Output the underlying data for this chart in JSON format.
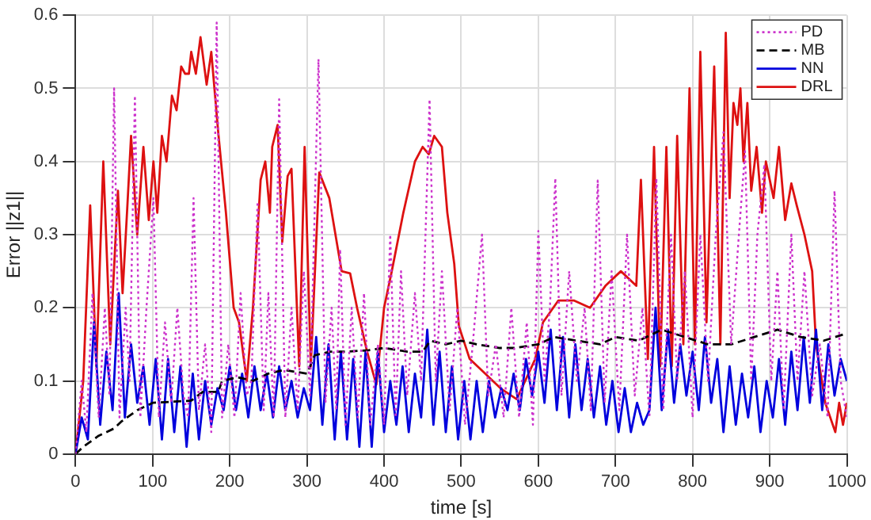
{
  "chart_data": {
    "type": "line",
    "xlabel": "time [s]",
    "ylabel": "Error ||z1||",
    "xlim": [
      0,
      1000
    ],
    "xticks": [
      0,
      100,
      200,
      300,
      400,
      500,
      600,
      700,
      800,
      900,
      1000
    ],
    "ylim": [
      0,
      0.6
    ],
    "yticks": [
      0,
      0.1,
      0.2,
      0.3,
      0.4,
      0.5,
      0.6
    ],
    "grid": true,
    "legend": "top right",
    "marker": "none",
    "series": [
      {
        "name": "PD",
        "color": "#cc33cc",
        "line_style": "dotted",
        "x": [
          0,
          8,
          14,
          22,
          30,
          38,
          44,
          50,
          57,
          65,
          70,
          77,
          84,
          92,
          101,
          108,
          116,
          124,
          132,
          140,
          146,
          153,
          160,
          168,
          176,
          183,
          190,
          198,
          206,
          214,
          222,
          228,
          236,
          244,
          250,
          257,
          264,
          272,
          280,
          288,
          296,
          304,
          315,
          324,
          332,
          338,
          343,
          350,
          358,
          366,
          374,
          382,
          392,
          400,
          408,
          415,
          422,
          430,
          440,
          448,
          459,
          467,
          475,
          485,
          495,
          505,
          515,
          527,
          535,
          545,
          555,
          565,
          575,
          585,
          593,
          600,
          608,
          615,
          622,
          630,
          640,
          650,
          660,
          668,
          677,
          686,
          695,
          705,
          715,
          725,
          735,
          744,
          753,
          762,
          772,
          780,
          790,
          800,
          810,
          820,
          830,
          840,
          850,
          860,
          868,
          876,
          884,
          893,
          902,
          910,
          918,
          928,
          936,
          945,
          955,
          965,
          975,
          984,
          992,
          1000
        ],
        "values": [
          0,
          0.1,
          0.03,
          0.22,
          0.05,
          0.2,
          0.08,
          0.5,
          0.05,
          0.2,
          0.1,
          0.49,
          0.05,
          0.2,
          0.35,
          0.05,
          0.18,
          0.07,
          0.2,
          0.08,
          0.05,
          0.35,
          0.06,
          0.15,
          0.03,
          0.59,
          0.05,
          0.15,
          0.05,
          0.22,
          0.08,
          0.1,
          0.345,
          0.06,
          0.22,
          0.05,
          0.485,
          0.05,
          0.2,
          0.06,
          0.25,
          0.08,
          0.54,
          0.07,
          0.2,
          0.06,
          0.28,
          0.04,
          0.2,
          0.05,
          0.22,
          0.04,
          0.15,
          0.04,
          0.3,
          0.05,
          0.25,
          0.08,
          0.22,
          0.1,
          0.485,
          0.1,
          0.25,
          0.06,
          0.2,
          0.04,
          0.15,
          0.3,
          0.08,
          0.15,
          0.05,
          0.2,
          0.05,
          0.18,
          0.04,
          0.305,
          0.1,
          0.2,
          0.377,
          0.08,
          0.25,
          0.1,
          0.2,
          0.06,
          0.374,
          0.07,
          0.25,
          0.06,
          0.3,
          0.08,
          0.2,
          0.05,
          0.377,
          0.06,
          0.3,
          0.1,
          0.25,
          0.05,
          0.3,
          0.1,
          0.3,
          0.44,
          0.15,
          0.3,
          0.414,
          0.1,
          0.3,
          0.396,
          0.1,
          0.25,
          0.06,
          0.3,
          0.1,
          0.25,
          0.08,
          0.15,
          0.05,
          0.36,
          0.1,
          0.05
        ]
      },
      {
        "name": "MB",
        "color": "#000000",
        "line_style": "dashed",
        "x": [
          0,
          10,
          30,
          50,
          60,
          80,
          100,
          150,
          165,
          185,
          190,
          210,
          230,
          250,
          270,
          300,
          310,
          330,
          350,
          380,
          400,
          430,
          450,
          460,
          480,
          500,
          520,
          550,
          570,
          600,
          620,
          650,
          680,
          700,
          730,
          760,
          790,
          820,
          850,
          880,
          910,
          940,
          970,
          1000
        ],
        "values": [
          0,
          0.01,
          0.025,
          0.035,
          0.045,
          0.06,
          0.07,
          0.073,
          0.085,
          0.085,
          0.1,
          0.105,
          0.1,
          0.11,
          0.115,
          0.11,
          0.135,
          0.14,
          0.14,
          0.142,
          0.145,
          0.14,
          0.14,
          0.155,
          0.15,
          0.155,
          0.15,
          0.145,
          0.145,
          0.15,
          0.16,
          0.155,
          0.15,
          0.16,
          0.155,
          0.17,
          0.16,
          0.15,
          0.15,
          0.16,
          0.17,
          0.16,
          0.155,
          0.165
        ]
      },
      {
        "name": "NN",
        "color": "#0000dd",
        "line_style": "solid",
        "x": [
          0,
          8,
          16,
          24,
          32,
          40,
          48,
          56,
          64,
          72,
          80,
          88,
          96,
          104,
          112,
          120,
          128,
          136,
          144,
          152,
          160,
          168,
          176,
          184,
          192,
          200,
          208,
          216,
          224,
          232,
          240,
          248,
          256,
          264,
          272,
          280,
          288,
          296,
          304,
          312,
          320,
          328,
          336,
          344,
          352,
          360,
          368,
          376,
          384,
          392,
          400,
          408,
          416,
          424,
          432,
          440,
          448,
          456,
          464,
          472,
          480,
          488,
          496,
          504,
          512,
          520,
          528,
          536,
          544,
          552,
          560,
          568,
          576,
          584,
          592,
          600,
          608,
          616,
          624,
          632,
          640,
          648,
          656,
          664,
          672,
          680,
          688,
          696,
          704,
          712,
          720,
          728,
          736,
          744,
          752,
          760,
          768,
          776,
          784,
          792,
          800,
          808,
          816,
          824,
          832,
          840,
          848,
          856,
          864,
          872,
          880,
          888,
          896,
          904,
          912,
          920,
          928,
          936,
          944,
          952,
          960,
          968,
          976,
          984,
          992,
          1000
        ],
        "values": [
          0,
          0.05,
          0.02,
          0.18,
          0.04,
          0.14,
          0.06,
          0.22,
          0.05,
          0.15,
          0.07,
          0.12,
          0.04,
          0.13,
          0.02,
          0.13,
          0.03,
          0.12,
          0.01,
          0.11,
          0.02,
          0.1,
          0.04,
          0.09,
          0.06,
          0.12,
          0.06,
          0.11,
          0.05,
          0.12,
          0.06,
          0.11,
          0.05,
          0.12,
          0.06,
          0.1,
          0.05,
          0.09,
          0.06,
          0.16,
          0.04,
          0.15,
          0.02,
          0.14,
          0.02,
          0.13,
          0.01,
          0.14,
          0.01,
          0.14,
          0.03,
          0.1,
          0.04,
          0.12,
          0.03,
          0.11,
          0.05,
          0.17,
          0.04,
          0.14,
          0.03,
          0.12,
          0.02,
          0.1,
          0.02,
          0.1,
          0.03,
          0.1,
          0.05,
          0.09,
          0.06,
          0.11,
          0.06,
          0.13,
          0.08,
          0.14,
          0.07,
          0.17,
          0.06,
          0.16,
          0.05,
          0.15,
          0.06,
          0.13,
          0.05,
          0.12,
          0.04,
          0.1,
          0.03,
          0.09,
          0.03,
          0.07,
          0.04,
          0.06,
          0.2,
          0.06,
          0.17,
          0.07,
          0.15,
          0.08,
          0.14,
          0.06,
          0.16,
          0.07,
          0.13,
          0.03,
          0.12,
          0.04,
          0.11,
          0.05,
          0.12,
          0.03,
          0.1,
          0.05,
          0.13,
          0.04,
          0.14,
          0.06,
          0.16,
          0.07,
          0.17,
          0.06,
          0.15,
          0.08,
          0.13,
          0.1
        ]
      },
      {
        "name": "DRL",
        "color": "#dd1111",
        "line_style": "solid",
        "x": [
          0,
          10,
          19,
          27,
          36,
          45,
          55,
          61,
          67,
          72,
          80,
          88,
          95,
          101,
          106,
          112,
          118,
          125,
          131,
          137,
          142,
          147,
          150,
          156,
          162,
          170,
          176,
          185,
          195,
          205,
          212,
          222,
          230,
          240,
          246,
          252,
          255,
          262,
          268,
          275,
          280,
          290,
          297,
          305,
          316,
          329,
          345,
          356,
          365,
          378,
          390,
          400,
          410,
          425,
          440,
          450,
          458,
          465,
          475,
          482,
          491,
          497,
          511,
          531,
          552,
          572,
          596,
          606,
          626,
          646,
          667,
          687,
          707,
          727,
          733,
          742,
          750,
          758,
          766,
          773,
          780,
          788,
          796,
          803,
          810,
          818,
          828,
          836,
          843,
          848,
          853,
          858,
          862,
          866,
          871,
          876,
          883,
          890,
          895,
          905,
          912,
          920,
          928,
          935,
          945,
          955,
          960,
          972,
          985,
          990,
          995,
          1000
        ],
        "values": [
          0,
          0.1,
          0.34,
          0.12,
          0.4,
          0.15,
          0.36,
          0.22,
          0.335,
          0.435,
          0.3,
          0.42,
          0.32,
          0.4,
          0.33,
          0.435,
          0.4,
          0.49,
          0.47,
          0.53,
          0.52,
          0.52,
          0.55,
          0.52,
          0.57,
          0.505,
          0.55,
          0.44,
          0.33,
          0.2,
          0.18,
          0.1,
          0.2,
          0.375,
          0.4,
          0.33,
          0.42,
          0.45,
          0.29,
          0.38,
          0.39,
          0.12,
          0.42,
          0.12,
          0.385,
          0.35,
          0.25,
          0.247,
          0.2,
          0.14,
          0.095,
          0.2,
          0.25,
          0.33,
          0.4,
          0.42,
          0.41,
          0.435,
          0.42,
          0.33,
          0.26,
          0.175,
          0.13,
          0.11,
          0.089,
          0.075,
          0.13,
          0.18,
          0.21,
          0.21,
          0.2,
          0.23,
          0.25,
          0.23,
          0.375,
          0.13,
          0.42,
          0.12,
          0.42,
          0.12,
          0.435,
          0.15,
          0.5,
          0.15,
          0.55,
          0.18,
          0.53,
          0.15,
          0.576,
          0.35,
          0.48,
          0.45,
          0.5,
          0.4,
          0.48,
          0.36,
          0.42,
          0.33,
          0.4,
          0.35,
          0.42,
          0.32,
          0.37,
          0.34,
          0.3,
          0.25,
          0.15,
          0.07,
          0.03,
          0.07,
          0.04,
          0.07
        ]
      }
    ]
  }
}
